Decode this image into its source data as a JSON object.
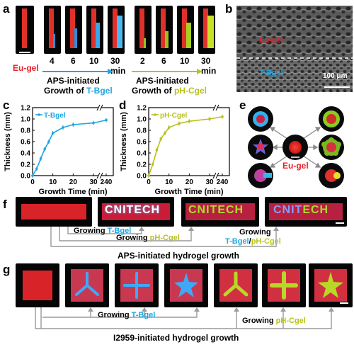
{
  "panels": {
    "a": "a",
    "b": "b",
    "c": "c",
    "d": "d",
    "e": "e",
    "f": "f",
    "g": "g"
  },
  "panel_a": {
    "eu_label": "Eu-gel",
    "t_times": [
      "4",
      "6",
      "10",
      "30"
    ],
    "p_times": [
      "2",
      "6",
      "10",
      "30"
    ],
    "unit": "min",
    "t_caption_1": "APS-initiated",
    "t_caption_2a": "Growth of ",
    "t_caption_2b": "T-Bgel",
    "p_caption_1": "APS-initiated",
    "p_caption_2a": "Growth of ",
    "p_caption_2b": "pH-Cgel"
  },
  "panel_b": {
    "top_label": "Eu-gel",
    "bottom_label": "T-Bgel",
    "scale": "100 μm"
  },
  "panel_e": {
    "center_label": "Eu-gel"
  },
  "panel_f": {
    "word": "CNITECH",
    "grow_t_a": "Growing ",
    "grow_t_b": "T-Bgel",
    "grow_p_a": "Growing ",
    "grow_p_b": "pH-Cgel",
    "grow_both_1": "Growing",
    "grow_both_2a": "T-Bgel",
    "grow_both_2b": "/",
    "grow_both_2c": "pH-Cgel",
    "caption": "APS-initiated hydrogel growth"
  },
  "panel_g": {
    "grow_t_a": "Growing ",
    "grow_t_b": "T-Bgel",
    "grow_p_a": "Growing ",
    "grow_p_b": "pH-Cgel",
    "caption": "I2959-initiated hydrogel growth"
  },
  "colors": {
    "eu": "#e8202a",
    "tbgel": "#1fa6e0",
    "phcgel": "#b8c21a",
    "arrow": "#9a9a9a"
  },
  "chart_data": [
    {
      "type": "line",
      "xlabel": "Growth Time (min)",
      "ylabel": "Thickness (mm)",
      "series": [
        {
          "name": "T-Bgel",
          "x": [
            0,
            2,
            4,
            6,
            8,
            10,
            15,
            20,
            30,
            240
          ],
          "y": [
            0.0,
            0.12,
            0.3,
            0.47,
            0.6,
            0.75,
            0.85,
            0.9,
            0.93,
            0.98
          ]
        }
      ],
      "xticks": [
        "0",
        "10",
        "20",
        "30",
        "240"
      ],
      "yticks": [
        "0.0",
        "0.2",
        "0.4",
        "0.6",
        "0.8",
        "1.0",
        "1.2"
      ],
      "ylim": [
        0,
        1.2
      ],
      "color": "#1fa6e0"
    },
    {
      "type": "line",
      "xlabel": "Growth Time (min)",
      "ylabel": "Thickness (mm)",
      "series": [
        {
          "name": "pH-Cgel",
          "x": [
            0,
            2,
            4,
            6,
            8,
            10,
            15,
            20,
            30,
            240
          ],
          "y": [
            0.0,
            0.2,
            0.45,
            0.65,
            0.75,
            0.85,
            0.92,
            0.96,
            1.0,
            1.04
          ]
        }
      ],
      "xticks": [
        "0",
        "10",
        "20",
        "30",
        "240"
      ],
      "yticks": [
        "0.0",
        "0.2",
        "0.4",
        "0.6",
        "0.8",
        "1.0",
        "1.2"
      ],
      "ylim": [
        0,
        1.2
      ],
      "color": "#b8c21a"
    }
  ]
}
